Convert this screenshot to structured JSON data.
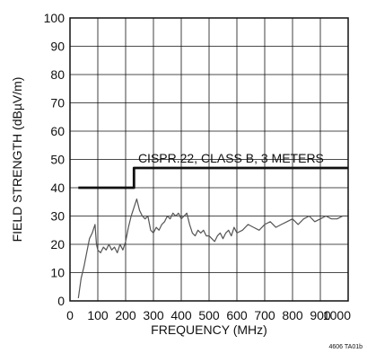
{
  "chart_data": {
    "type": "line",
    "title": "",
    "xlabel": "FREQUENCY (MHz)",
    "ylabel": "FIELD STRENGTH (dBµV/m)",
    "xlim": [
      0,
      1000
    ],
    "ylim": [
      0,
      100
    ],
    "x_ticks": [
      "0",
      "100",
      "200",
      "300",
      "400",
      "500",
      "600",
      "700",
      "800",
      "900",
      "1000"
    ],
    "y_ticks": [
      "0",
      "10",
      "20",
      "30",
      "40",
      "50",
      "60",
      "70",
      "80",
      "90",
      "100"
    ],
    "grid": true,
    "legend": "none",
    "series": [
      {
        "name": "CISPR.22, CLASS B, 3 METERS",
        "style": "limit-step",
        "color": "#111111",
        "x": [
          30,
          230,
          230,
          1000
        ],
        "y": [
          40,
          40,
          47,
          47
        ]
      },
      {
        "name": "",
        "style": "measured-trace",
        "color": "#555555",
        "x": [
          30,
          40,
          50,
          60,
          70,
          80,
          90,
          95,
          100,
          110,
          120,
          130,
          140,
          150,
          160,
          170,
          180,
          190,
          200,
          210,
          220,
          230,
          240,
          250,
          260,
          270,
          280,
          290,
          300,
          310,
          320,
          330,
          340,
          350,
          360,
          370,
          380,
          390,
          400,
          410,
          420,
          430,
          440,
          450,
          460,
          470,
          480,
          490,
          500,
          510,
          520,
          530,
          540,
          550,
          560,
          570,
          580,
          590,
          600,
          620,
          640,
          660,
          680,
          700,
          720,
          740,
          760,
          780,
          800,
          820,
          840,
          860,
          880,
          900,
          920,
          940,
          960,
          980,
          1000
        ],
        "y": [
          1,
          8,
          12,
          17,
          22,
          24,
          27,
          20,
          18,
          17,
          19,
          18,
          20,
          18,
          19,
          17,
          20,
          18,
          21,
          26,
          30,
          33,
          36,
          32,
          30,
          29,
          30,
          25,
          24,
          26,
          25,
          27,
          28,
          30,
          29,
          31,
          30,
          31,
          29,
          30,
          31,
          27,
          24,
          23,
          25,
          24,
          25,
          23,
          23,
          22,
          21,
          23,
          24,
          22,
          24,
          25,
          23,
          26,
          24,
          25,
          27,
          26,
          25,
          27,
          28,
          26,
          27,
          28,
          29,
          27,
          29,
          30,
          28,
          29,
          30,
          29,
          29,
          30,
          30
        ]
      }
    ],
    "annotations": [
      {
        "text": "CISPR.22, CLASS B, 3 METERS",
        "x": 245,
        "y": 47
      }
    ],
    "figure_id": "4606 TA01b"
  }
}
